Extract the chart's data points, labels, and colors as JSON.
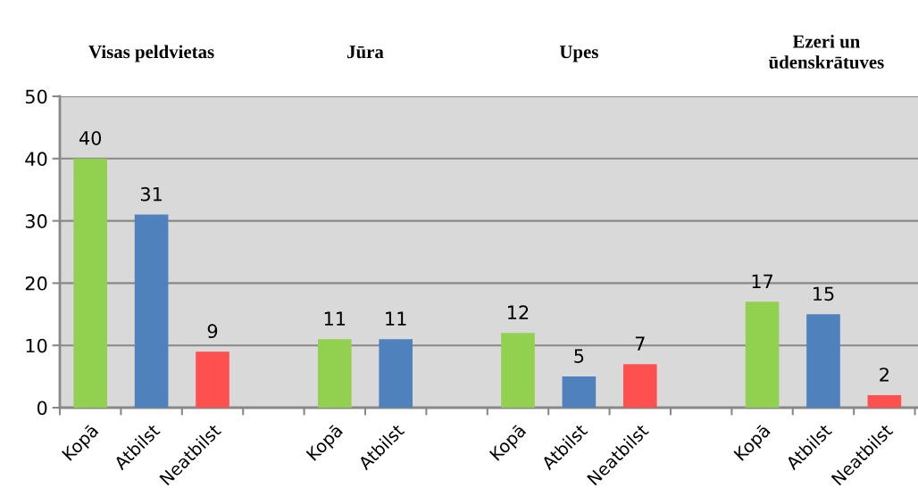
{
  "chart_data": {
    "type": "bar",
    "annotations": [
      "Visas peldvietas",
      "Jūra",
      "Upes",
      "Ezeri un\nūdenskrātuves"
    ],
    "categories": [
      "Kopā",
      "Atbilst",
      "Neatbilst",
      null,
      "Kopā",
      "Atbilst",
      null,
      "Kopā",
      "Atbilst",
      "Neatbilst",
      null,
      "Kopā",
      "Atbilst",
      "Neatbilst"
    ],
    "values": [
      40,
      31,
      9,
      null,
      11,
      11,
      null,
      12,
      5,
      7,
      null,
      17,
      15,
      2
    ],
    "colors": [
      "#92d050",
      "#4f81bd",
      "#ff5050",
      "#000000",
      "#92d050",
      "#4f81bd",
      "#000000",
      "#92d050",
      "#4f81bd",
      "#ff5050",
      "#000000",
      "#92d050",
      "#4f81bd",
      "#ff5050"
    ],
    "data_labels": true,
    "ylim": [
      0,
      50
    ],
    "yticks": [
      0,
      10,
      20,
      30,
      40,
      50
    ],
    "grid": "y"
  }
}
